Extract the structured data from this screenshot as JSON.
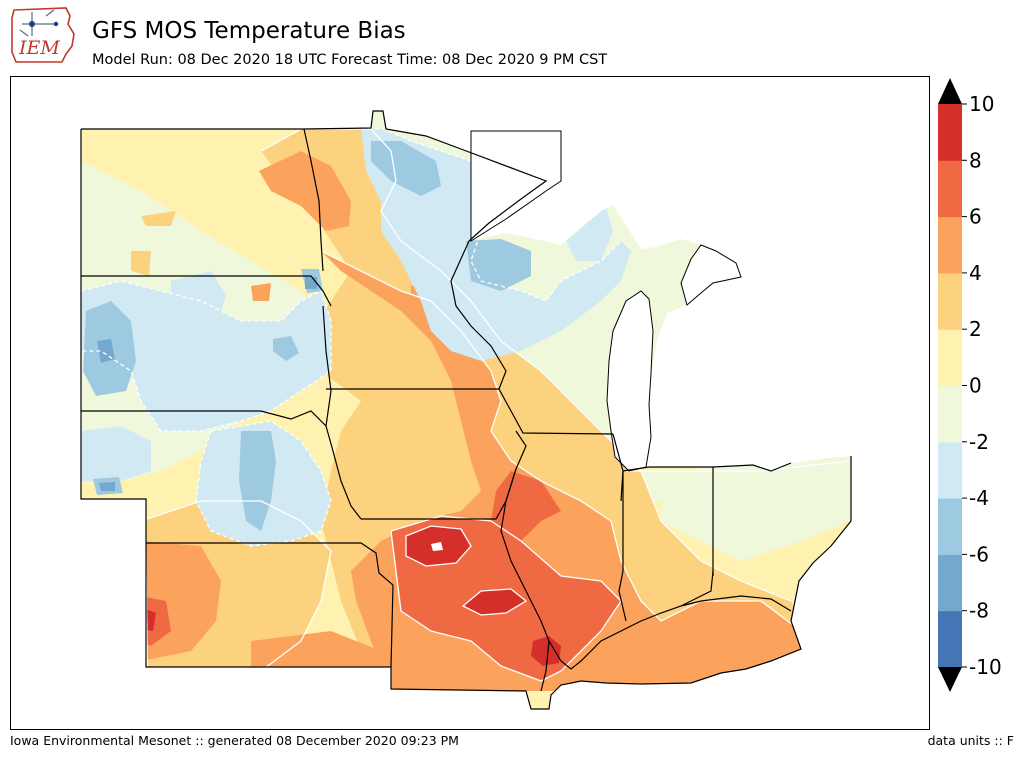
{
  "header": {
    "logo_text": "IEM",
    "title": "GFS MOS Temperature Bias",
    "subtitle": "Model Run: 08 Dec 2020 18 UTC Forecast Time: 08 Dec 2020 9 PM CST"
  },
  "footer": {
    "left": "Iowa Environmental Mesonet :: generated 08 December 2020 09:23 PM",
    "right": "data units :: F"
  },
  "colorbar": {
    "levels": [
      -10,
      -8,
      -6,
      -4,
      -2,
      0,
      2,
      4,
      6,
      8,
      10
    ],
    "labels": [
      "10",
      "8",
      "6",
      "4",
      "2",
      "0",
      "-2",
      "-4",
      "-6",
      "-8",
      "-10"
    ],
    "colors": [
      "#4575b4",
      "#74a9cf",
      "#9ecae1",
      "#d1e9f3",
      "#f0f8dc",
      "#fff2b0",
      "#fdd27e",
      "#fba35c",
      "#ef6a43",
      "#d52f2a"
    ],
    "over_color": "#000000",
    "under_color": "#000000"
  },
  "map": {
    "lake_color": "#ffffff",
    "boundary_color": "#000000",
    "contour_line_color": "#ffffff"
  }
}
